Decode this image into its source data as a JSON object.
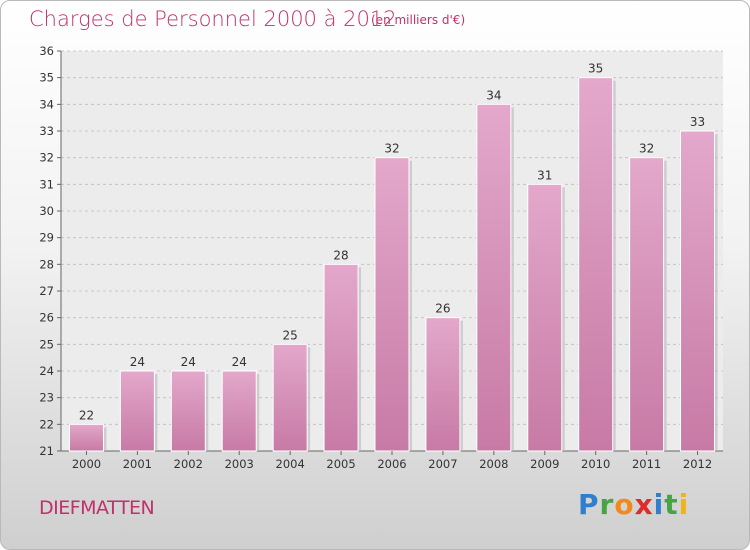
{
  "title": "Charges de Personnel 2000 à 2012",
  "subtitle": "(en milliers d'€)",
  "city": "DIEFMATTEN",
  "brand": {
    "p": "P",
    "r": "r",
    "o": "o",
    "x": "x",
    "i1": "i",
    "t": "t",
    "i2": "i"
  },
  "colors": {
    "bar": "#c77aa5",
    "bar_light": "#e3a8cb",
    "accent": "#c0306b"
  },
  "chart_data": {
    "type": "bar",
    "categories": [
      "2000",
      "2001",
      "2002",
      "2003",
      "2004",
      "2005",
      "2006",
      "2007",
      "2008",
      "2009",
      "2010",
      "2011",
      "2012"
    ],
    "values": [
      22,
      24,
      24,
      24,
      25,
      28,
      32,
      26,
      34,
      31,
      35,
      32,
      33
    ],
    "ylim": [
      21,
      36
    ],
    "yticks": [
      21,
      22,
      23,
      24,
      25,
      26,
      27,
      28,
      29,
      30,
      31,
      32,
      33,
      34,
      35,
      36
    ],
    "grid": true
  }
}
